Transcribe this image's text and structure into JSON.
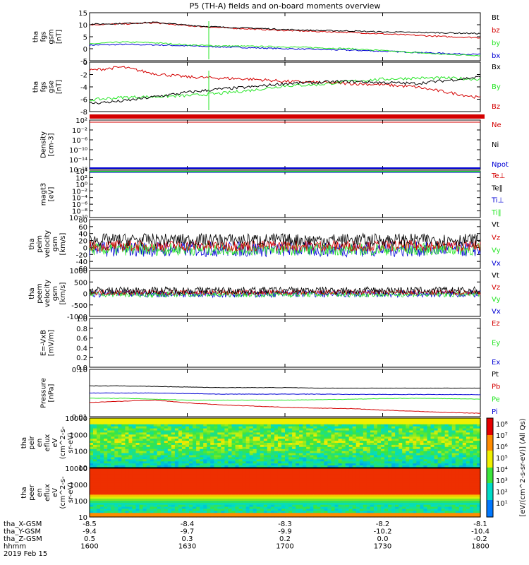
{
  "title": "P5 (TH-A) fields and on-board moments overview",
  "colors": {
    "black": "#000000",
    "red": "#d40000",
    "green": "#27e627",
    "blue": "#0000d4"
  },
  "chart_data": [
    {
      "type": "line",
      "id": "fgs_gsm",
      "ylabel": [
        "tha",
        "fgs",
        "gsm",
        "[nT]"
      ],
      "ylim": [
        -5,
        15
      ],
      "yticks": [
        "15",
        "10",
        "5",
        "0",
        "-5"
      ],
      "series": [
        {
          "name": "Bt",
          "color": "black",
          "values": [
            10.2,
            10.5,
            11.0,
            9.8,
            9.0,
            8.6,
            8.0,
            7.6,
            7.4,
            7.0,
            6.8,
            6.6,
            6.3
          ]
        },
        {
          "name": "bz",
          "color": "red",
          "values": [
            10.0,
            10.3,
            10.8,
            9.6,
            8.8,
            8.2,
            7.6,
            7.2,
            6.8,
            6.2,
            5.6,
            5.0,
            4.6
          ]
        },
        {
          "name": "by",
          "color": "green",
          "values": [
            2.0,
            2.8,
            2.5,
            1.6,
            1.2,
            1.0,
            0.8,
            0.4,
            0.0,
            -0.8,
            -1.6,
            -2.4,
            -2.8
          ]
        },
        {
          "name": "bx",
          "color": "blue",
          "values": [
            1.5,
            1.8,
            1.6,
            1.2,
            0.8,
            0.4,
            0.0,
            -0.3,
            -0.6,
            -1.0,
            -1.5,
            -2.0,
            -2.4
          ]
        }
      ]
    },
    {
      "type": "line",
      "id": "fgs_gse",
      "ylabel": [
        "tha",
        "fgs",
        "gse",
        "[nT]"
      ],
      "ylim": [
        -8.5,
        0.5
      ],
      "yticks": [
        "0",
        "-2",
        "-4",
        "-6",
        "-8"
      ],
      "series": [
        {
          "name": "Bx",
          "color": "black",
          "values": [
            -7.0,
            -6.6,
            -5.8,
            -5.0,
            -4.4,
            -4.0,
            -3.4,
            -3.2,
            -3.0,
            -3.2,
            -3.4,
            -2.8,
            -2.2
          ]
        },
        {
          "name": "By",
          "color": "green",
          "values": [
            -6.4,
            -5.9,
            -5.8,
            -5.6,
            -5.2,
            -4.6,
            -3.8,
            -3.6,
            -3.0,
            -2.6,
            -2.4,
            -2.4,
            -2.6
          ]
        },
        {
          "name": "Bz",
          "color": "red",
          "values": [
            -1.0,
            -0.4,
            -1.6,
            -2.2,
            -2.4,
            -2.6,
            -3.0,
            -3.2,
            -3.4,
            -3.6,
            -4.0,
            -5.0,
            -6.0
          ]
        }
      ]
    },
    {
      "type": "line",
      "id": "density",
      "ylabel": [
        "Density",
        "[cm-3]"
      ],
      "ylim": [
        "1e-16",
        "1e2"
      ],
      "yticks": [
        "10²",
        "10⁻²",
        "10⁻⁶",
        "10⁻¹⁰",
        "10⁻¹⁴",
        "10⁻¹⁸"
      ],
      "series": [
        {
          "name": "Ne",
          "color": "red"
        },
        {
          "name": "Ni",
          "color": "black"
        },
        {
          "name": "Npot",
          "color": "blue"
        }
      ]
    },
    {
      "type": "line",
      "id": "magt3",
      "ylabel": [
        "magt3",
        "[eV]"
      ],
      "ylim": [
        "1e-10",
        "1e4"
      ],
      "yticks": [
        "10⁴",
        "10²",
        "10⁰",
        "10⁻²",
        "10⁻⁴",
        "10⁻⁶",
        "10⁻⁸",
        "10⁻¹⁰"
      ],
      "series": [
        {
          "name": "Te⊥",
          "color": "red"
        },
        {
          "name": "Te‖",
          "color": "black"
        },
        {
          "name": "Ti⊥",
          "color": "blue"
        },
        {
          "name": "Ti‖",
          "color": "green"
        }
      ]
    },
    {
      "type": "line",
      "id": "peim_velocity",
      "ylabel": [
        "tha",
        "peim",
        "velocity",
        "gsm",
        "[km/s]"
      ],
      "ylim": [
        -60,
        80
      ],
      "yticks": [
        "80",
        "60",
        "40",
        "20",
        "0",
        "-20",
        "-40",
        "-60"
      ],
      "series": [
        {
          "name": "Vt",
          "color": "black"
        },
        {
          "name": "Vz",
          "color": "red"
        },
        {
          "name": "Vy",
          "color": "green"
        },
        {
          "name": "Vx",
          "color": "blue"
        }
      ]
    },
    {
      "type": "line",
      "id": "peem_velocity",
      "ylabel": [
        "tha",
        "peem",
        "velocity",
        "gsm",
        "[km/s]"
      ],
      "ylim": [
        -1000,
        1000
      ],
      "yticks": [
        "1000",
        "500",
        "0",
        "-500",
        "-1000"
      ],
      "series": [
        {
          "name": "Vt",
          "color": "black"
        },
        {
          "name": "Vz",
          "color": "red"
        },
        {
          "name": "Vy",
          "color": "green"
        },
        {
          "name": "Vx",
          "color": "blue"
        }
      ]
    },
    {
      "type": "line",
      "id": "efield",
      "ylabel": [
        "E=-VxB",
        "[mV/m]"
      ],
      "ylim": [
        0,
        1
      ],
      "yticks": [
        "1.0",
        "0.8",
        "0.6",
        "0.4",
        "0.2",
        "0.0"
      ],
      "series": [
        {
          "name": "Ez",
          "color": "red"
        },
        {
          "name": "Ey",
          "color": "green"
        },
        {
          "name": "Ex",
          "color": "blue"
        }
      ]
    },
    {
      "type": "line",
      "id": "pressure",
      "ylabel": [
        "Pressure",
        "[nPa]"
      ],
      "ylim": [
        0.01,
        1
      ],
      "yticks": [
        "0.10",
        "0.01"
      ],
      "series": [
        {
          "name": "Pt",
          "color": "black",
          "values": [
            0.2,
            0.2,
            0.19,
            0.18,
            0.17,
            0.17,
            0.17,
            0.16,
            0.16,
            0.16,
            0.16,
            0.16,
            0.16
          ]
        },
        {
          "name": "Pb",
          "color": "red",
          "values": [
            0.04,
            0.045,
            0.05,
            0.038,
            0.032,
            0.028,
            0.025,
            0.023,
            0.022,
            0.019,
            0.017,
            0.015,
            0.014
          ]
        },
        {
          "name": "Pe",
          "color": "green",
          "values": [
            0.06,
            0.06,
            0.055,
            0.05,
            0.05,
            0.05,
            0.05,
            0.052,
            0.055,
            0.058,
            0.06,
            0.058,
            0.055
          ]
        },
        {
          "name": "Pi",
          "color": "blue",
          "values": [
            0.1,
            0.1,
            0.1,
            0.095,
            0.09,
            0.09,
            0.09,
            0.09,
            0.088,
            0.088,
            0.087,
            0.087,
            0.086
          ]
        }
      ]
    },
    {
      "type": "heatmap",
      "id": "peir_spec",
      "ylabel": [
        "tha",
        "peir",
        "en",
        "eflux",
        "eV",
        "(cm^2-s-",
        "sr-eV)"
      ],
      "ylim": [
        5,
        20000
      ],
      "yticks": [
        "10000",
        "1000",
        "100",
        "10"
      ]
    },
    {
      "type": "heatmap",
      "id": "peer_spec",
      "ylabel": [
        "tha",
        "peer",
        "en",
        "eflux",
        "eV",
        "(cm^2-s-",
        "sr-eV)"
      ],
      "ylim": [
        5,
        20000
      ],
      "yticks": [
        "10000",
        "1000",
        "100",
        "10"
      ]
    }
  ],
  "colorbar": {
    "label": "[eV/(cm^2-s-sr-eV)] (All Qs)",
    "ticks": [
      "10⁸",
      "10⁷",
      "10⁶",
      "10⁵",
      "10⁴",
      "10³",
      "10²",
      "10¹"
    ],
    "label2": "[eV/(cm^2-s-sr-eV)] (All Qs)"
  },
  "footer": {
    "rows": [
      {
        "label": "tha_X-GSM",
        "values": [
          "-8.5",
          "-8.4",
          "-8.3",
          "-8.2",
          "-8.1"
        ]
      },
      {
        "label": "tha_Y-GSM",
        "values": [
          "-9.4",
          "-9.7",
          "-9.9",
          "-10.2",
          "-10.4"
        ]
      },
      {
        "label": "tha_Z-GSM",
        "values": [
          "0.5",
          "0.3",
          "0.2",
          "0.0",
          "-0.2"
        ]
      },
      {
        "label": "hhmm",
        "values": [
          "1600",
          "1630",
          "1700",
          "1730",
          "1800"
        ]
      }
    ],
    "date": "2019 Feb 15"
  }
}
